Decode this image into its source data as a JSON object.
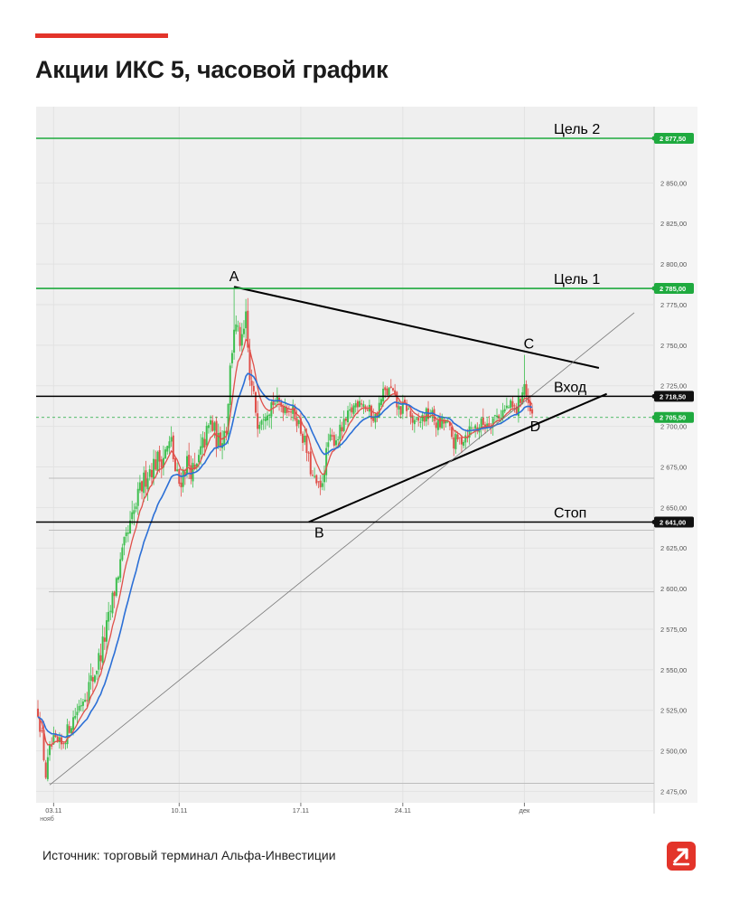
{
  "page": {
    "title": "Акции ИКС 5, часовой график",
    "source": "Источник: торговый терминал Альфа-Инвестиции"
  },
  "colors": {
    "accent": "#e3342a",
    "target_line": "#1faa3f",
    "level_line": "#000000",
    "candle_up": "#3ebf4f",
    "candle_down": "#e0504a",
    "ma_fast": "#e0504a",
    "ma_slow": "#2b6fd6",
    "plot_bg": "#efefef"
  },
  "icons": {
    "logo": "alfa-logo-icon"
  },
  "chart_data": {
    "type": "candlestick",
    "y_range": [
      2468,
      2897
    ],
    "y_ticks": [
      2475,
      2500,
      2525,
      2550,
      2575,
      2600,
      2625,
      2650,
      2675,
      2700,
      2725,
      2750,
      2775,
      2800,
      2825,
      2850
    ],
    "y_tick_labels": [
      "2 475,00",
      "2 500,00",
      "2 525,00",
      "2 550,00",
      "2 575,00",
      "2 600,00",
      "2 625,00",
      "2 650,00",
      "2 675,00",
      "2 700,00",
      "2 725,00",
      "2 750,00",
      "2 775,00",
      "2 800,00",
      "2 825,00",
      "2 850,00"
    ],
    "x_range": [
      0,
      152
    ],
    "x_ticks": [
      {
        "x": 4,
        "label": "03.11"
      },
      {
        "x": 36,
        "label": "10.11"
      },
      {
        "x": 67,
        "label": "17.11"
      },
      {
        "x": 93,
        "label": "24.11"
      },
      {
        "x": 124,
        "label": "дек"
      }
    ],
    "x_sublabels": [
      {
        "x": 0,
        "label": "нояб"
      }
    ],
    "grid": true,
    "levels": [
      {
        "label": "Цель 2",
        "value": 2877.5,
        "badge": "2 877,50",
        "style": "target"
      },
      {
        "label": "Цель 1",
        "value": 2785.0,
        "badge": "2 785,00",
        "style": "target"
      },
      {
        "label": "Вход",
        "value": 2718.5,
        "badge": "2 718,50",
        "style": "level"
      },
      {
        "label": "Стоп",
        "value": 2641.0,
        "badge": "2 641,00",
        "style": "level"
      }
    ],
    "last_price": {
      "value": 2705.5,
      "badge": "2 705,50"
    },
    "points": [
      {
        "label": "A",
        "x": 50,
        "y": 2786
      },
      {
        "label": "B",
        "x": 71,
        "y": 2641
      },
      {
        "label": "C",
        "x": 124,
        "y": 2744
      },
      {
        "label": "D",
        "x": 124,
        "y": 2706
      }
    ],
    "trendlines": [
      {
        "from": {
          "x": 50,
          "y": 2786
        },
        "to": {
          "x": 143,
          "y": 2736
        },
        "style": "thick"
      },
      {
        "from": {
          "x": 69,
          "y": 2641
        },
        "to": {
          "x": 145,
          "y": 2720
        },
        "style": "thick"
      },
      {
        "from": {
          "x": 3,
          "y": 2479
        },
        "to": {
          "x": 152,
          "y": 2770
        },
        "style": "thin"
      }
    ],
    "anchors": [
      [
        0,
        2525
      ],
      [
        1,
        2508
      ],
      [
        2,
        2485
      ],
      [
        3,
        2500
      ],
      [
        4,
        2505
      ],
      [
        6,
        2503
      ],
      [
        8,
        2515
      ],
      [
        10,
        2525
      ],
      [
        12,
        2535
      ],
      [
        14,
        2545
      ],
      [
        16,
        2560
      ],
      [
        18,
        2580
      ],
      [
        20,
        2605
      ],
      [
        22,
        2625
      ],
      [
        24,
        2642
      ],
      [
        26,
        2660
      ],
      [
        28,
        2672
      ],
      [
        30,
        2678
      ],
      [
        32,
        2682
      ],
      [
        34,
        2690
      ],
      [
        35,
        2672
      ],
      [
        36,
        2665
      ],
      [
        38,
        2678
      ],
      [
        40,
        2670
      ],
      [
        42,
        2688
      ],
      [
        44,
        2702
      ],
      [
        46,
        2690
      ],
      [
        48,
        2700
      ],
      [
        49,
        2735
      ],
      [
        50,
        2762
      ],
      [
        52,
        2750
      ],
      [
        53,
        2765
      ],
      [
        54,
        2728
      ],
      [
        56,
        2705
      ],
      [
        58,
        2712
      ],
      [
        60,
        2715
      ],
      [
        62,
        2713
      ],
      [
        64,
        2712
      ],
      [
        66,
        2705
      ],
      [
        68,
        2690
      ],
      [
        70,
        2668
      ],
      [
        72,
        2660
      ],
      [
        74,
        2690
      ],
      [
        76,
        2693
      ],
      [
        78,
        2700
      ],
      [
        80,
        2710
      ],
      [
        82,
        2718
      ],
      [
        84,
        2710
      ],
      [
        86,
        2705
      ],
      [
        88,
        2720
      ],
      [
        90,
        2722
      ],
      [
        92,
        2710
      ],
      [
        94,
        2712
      ],
      [
        96,
        2700
      ],
      [
        98,
        2705
      ],
      [
        100,
        2708
      ],
      [
        102,
        2700
      ],
      [
        104,
        2703
      ],
      [
        106,
        2690
      ],
      [
        108,
        2692
      ],
      [
        110,
        2698
      ],
      [
        112,
        2700
      ],
      [
        114,
        2702
      ],
      [
        116,
        2705
      ],
      [
        118,
        2708
      ],
      [
        120,
        2712
      ],
      [
        122,
        2710
      ],
      [
        124,
        2726
      ],
      [
        125,
        2710
      ],
      [
        126,
        2706
      ]
    ]
  }
}
